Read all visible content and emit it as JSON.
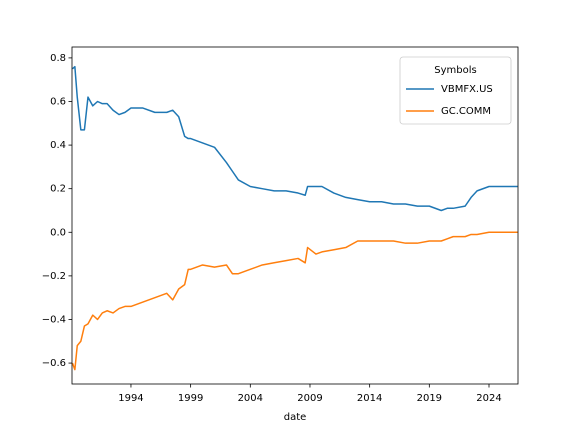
{
  "chart_data": {
    "type": "line",
    "xlabel": "date",
    "legend_title": "Symbols",
    "legend_loc": "upper right",
    "x": [
      1989.1,
      1989.3,
      1989.5,
      1989.8,
      1990.1,
      1990.4,
      1990.8,
      1991.2,
      1991.6,
      1992,
      1992.5,
      1993,
      1993.5,
      1994,
      1995,
      1996,
      1997,
      1997.5,
      1998,
      1998.5,
      1998.8,
      1999,
      2000,
      2001,
      2002,
      2002.5,
      2003,
      2004,
      2005,
      2006,
      2007,
      2008,
      2008.6,
      2008.8,
      2009.5,
      2010,
      2011,
      2012,
      2013,
      2014,
      2015,
      2016,
      2017,
      2018,
      2019,
      2020,
      2020.5,
      2021,
      2022,
      2022.5,
      2023,
      2024,
      2025,
      2026.4
    ],
    "series": [
      {
        "name": "VBMFX.US",
        "color": "#1f77b4",
        "values": [
          0.75,
          0.76,
          0.62,
          0.47,
          0.47,
          0.62,
          0.58,
          0.6,
          0.59,
          0.59,
          0.56,
          0.54,
          0.55,
          0.57,
          0.57,
          0.55,
          0.55,
          0.56,
          0.53,
          0.44,
          0.43,
          0.43,
          0.41,
          0.39,
          0.32,
          0.28,
          0.24,
          0.21,
          0.2,
          0.19,
          0.19,
          0.18,
          0.17,
          0.21,
          0.21,
          0.21,
          0.18,
          0.16,
          0.15,
          0.14,
          0.14,
          0.13,
          0.13,
          0.12,
          0.12,
          0.1,
          0.11,
          0.11,
          0.12,
          0.16,
          0.19,
          0.21,
          0.21,
          0.21
        ]
      },
      {
        "name": "GC.COMM",
        "color": "#ff7f0e",
        "values": [
          -0.6,
          -0.63,
          -0.52,
          -0.5,
          -0.43,
          -0.42,
          -0.38,
          -0.4,
          -0.37,
          -0.36,
          -0.37,
          -0.35,
          -0.34,
          -0.34,
          -0.32,
          -0.3,
          -0.28,
          -0.31,
          -0.26,
          -0.24,
          -0.17,
          -0.17,
          -0.15,
          -0.16,
          -0.15,
          -0.19,
          -0.19,
          -0.17,
          -0.15,
          -0.14,
          -0.13,
          -0.12,
          -0.14,
          -0.07,
          -0.1,
          -0.09,
          -0.08,
          -0.07,
          -0.04,
          -0.04,
          -0.04,
          -0.04,
          -0.05,
          -0.05,
          -0.04,
          -0.04,
          -0.03,
          -0.02,
          -0.02,
          -0.01,
          -0.01,
          0.0,
          0.0,
          0.0
        ]
      }
    ],
    "xlim": [
      1989.06,
      2026.43
    ],
    "ylim": [
      -0.696,
      0.85
    ],
    "xticks": [
      1994,
      1999,
      2004,
      2009,
      2014,
      2019,
      2024
    ],
    "yticks": [
      {
        "value": -0.6,
        "label": "−0.6"
      },
      {
        "value": -0.4,
        "label": "−0.4"
      },
      {
        "value": -0.2,
        "label": "−0.2"
      },
      {
        "value": 0,
        "label": "0.0"
      },
      0.2,
      0.4,
      0.6,
      0.8
    ]
  }
}
